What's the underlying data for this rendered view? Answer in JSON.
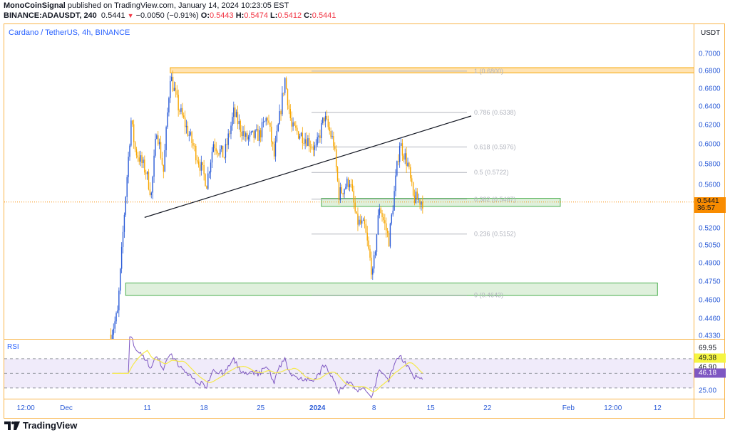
{
  "header": {
    "author": "MonoCoinSignal",
    "published": "published on TradingView.com, January 14, 2024 10:23:05 EST",
    "symbol": "BINANCE:ADAUSDT, 240",
    "last": "0.5441",
    "change": "−0.0050 (−0.91%)",
    "change_direction_icon": "triangle-down-icon",
    "o_label": "O:",
    "o": "0.5443",
    "h_label": "H:",
    "h": "0.5474",
    "l_label": "L:",
    "l": "0.5412",
    "c_label": "C:",
    "c": "0.5441"
  },
  "chart_title": "Cardano / TetherUS, 4h, BINANCE",
  "colors": {
    "up": "#2a5bd7",
    "down": "#f7a600",
    "accent": "#f98c00",
    "rsi": "#7e57c2",
    "rsi_ma": "#f5e94a",
    "zone_green": "#4caf50",
    "zone_orange": "#f7a600"
  },
  "price_axis": {
    "currency": "USDT",
    "scale": "log",
    "ticks": [
      "0.7000",
      "0.6800",
      "0.6600",
      "0.6400",
      "0.6200",
      "0.6000",
      "0.5800",
      "0.5600",
      "0.5200",
      "0.5050",
      "0.4900",
      "0.4750",
      "0.4600",
      "0.4460",
      "0.4330"
    ],
    "current_price": "0.5441",
    "countdown": "36:57"
  },
  "time_axis": [
    {
      "label": "12:00",
      "t": "2023-11-26T00:00",
      "bold": false
    },
    {
      "label": "Dec",
      "t": "2023-12-01T00:00",
      "bold": false
    },
    {
      "label": "11",
      "t": "2023-12-11T00:00",
      "bold": false
    },
    {
      "label": "18",
      "t": "2023-12-18T00:00",
      "bold": false
    },
    {
      "label": "25",
      "t": "2023-12-25T00:00",
      "bold": false
    },
    {
      "label": "2024",
      "t": "2024-01-01T00:00",
      "bold": true
    },
    {
      "label": "8",
      "t": "2024-01-08T00:00",
      "bold": false
    },
    {
      "label": "15",
      "t": "2024-01-15T00:00",
      "bold": false
    },
    {
      "label": "22",
      "t": "2024-01-22T00:00",
      "bold": false
    },
    {
      "label": "Feb",
      "t": "2024-02-01T00:00",
      "bold": false
    },
    {
      "label": "12:00",
      "t": "2024-02-06T12:00",
      "bold": false
    },
    {
      "label": "12",
      "t": "2024-02-12T00:00",
      "bold": false
    }
  ],
  "chart_data": {
    "type": "candlestick",
    "interval": "4h",
    "price_path": [
      [
        "2023-12-06T12:00",
        0.434
      ],
      [
        "2023-12-07T08:00",
        0.45
      ],
      [
        "2023-12-08T04:00",
        0.534
      ],
      [
        "2023-12-09T00:00",
        0.625
      ],
      [
        "2023-12-09T12:00",
        0.595
      ],
      [
        "2023-12-10T20:00",
        0.573
      ],
      [
        "2023-12-11T12:00",
        0.551
      ],
      [
        "2023-12-12T04:00",
        0.617
      ],
      [
        "2023-12-13T00:00",
        0.573
      ],
      [
        "2023-12-13T20:00",
        0.676
      ],
      [
        "2023-12-14T20:00",
        0.64
      ],
      [
        "2023-12-16T04:00",
        0.61
      ],
      [
        "2023-12-18T08:00",
        0.562
      ],
      [
        "2023-12-19T04:00",
        0.602
      ],
      [
        "2023-12-20T12:00",
        0.588
      ],
      [
        "2023-12-21T16:00",
        0.633
      ],
      [
        "2023-12-23T04:00",
        0.606
      ],
      [
        "2023-12-24T20:00",
        0.61
      ],
      [
        "2023-12-25T20:00",
        0.629
      ],
      [
        "2023-12-26T16:00",
        0.588
      ],
      [
        "2023-12-28T00:00",
        0.671
      ],
      [
        "2023-12-28T20:00",
        0.617
      ],
      [
        "2023-12-30T16:00",
        0.606
      ],
      [
        "2023-12-31T20:00",
        0.595
      ],
      [
        "2024-01-01T20:00",
        0.629
      ],
      [
        "2024-01-03T00:00",
        0.602
      ],
      [
        "2024-01-03T16:00",
        0.551
      ],
      [
        "2024-01-05T00:00",
        0.565
      ],
      [
        "2024-01-05T20:00",
        0.527
      ],
      [
        "2024-01-06T20:00",
        0.521
      ],
      [
        "2024-01-07T20:00",
        0.48
      ],
      [
        "2024-01-08T16:00",
        0.541
      ],
      [
        "2024-01-09T20:00",
        0.51
      ],
      [
        "2024-01-10T08:00",
        0.541
      ],
      [
        "2024-01-11T04:00",
        0.602
      ],
      [
        "2024-01-12T04:00",
        0.58
      ],
      [
        "2024-01-12T20:00",
        0.548
      ],
      [
        "2024-01-14T04:00",
        0.5441
      ]
    ],
    "fibonacci": [
      {
        "ratio": "1",
        "price": "0.6800"
      },
      {
        "ratio": "0.786",
        "price": "0.6338"
      },
      {
        "ratio": "0.618",
        "price": "0.5976"
      },
      {
        "ratio": "0.5",
        "price": "0.5722"
      },
      {
        "ratio": "0.382",
        "price": "0.5467"
      },
      {
        "ratio": "0.236",
        "price": "0.5152"
      },
      {
        "ratio": "0",
        "price": "0.4643"
      }
    ],
    "trendline": [
      [
        "2023-12-10T16:00",
        0.53
      ],
      [
        "2024-01-20T00:00",
        0.63
      ]
    ],
    "zones": [
      {
        "color": "orange",
        "from": "2023-12-13T20:00",
        "to": "2024-02-20T00:00",
        "top": 0.684,
        "bottom": 0.678
      },
      {
        "color": "green",
        "from": "2024-01-01T12:00",
        "to": "2024-01-31T00:00",
        "top": 0.5475,
        "bottom": 0.54
      },
      {
        "color": "green",
        "from": "2023-12-08T08:00",
        "to": "2024-02-12T00:00",
        "top": 0.474,
        "bottom": 0.464
      }
    ]
  },
  "rsi": {
    "label": "RSI",
    "levels": [
      "69.95",
      "46.90",
      "25.00"
    ],
    "rsi_value": "46.18",
    "ma_value": "49.38",
    "bands": [
      70,
      50,
      30
    ]
  },
  "footer": {
    "brand": "TradingView"
  }
}
